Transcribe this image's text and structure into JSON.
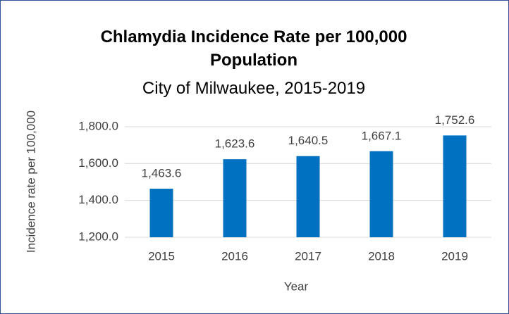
{
  "chart_data": {
    "type": "bar",
    "title": "Chlamydia Incidence Rate per 100,000 Population",
    "subtitle": "City of Milwaukee, 2015-2019",
    "x_label": "Year",
    "y_label": "Incidence rate per 100,000",
    "categories": [
      "2015",
      "2016",
      "2017",
      "2018",
      "2019"
    ],
    "values": [
      1463.6,
      1623.6,
      1640.5,
      1667.1,
      1752.6
    ],
    "value_labels": [
      "1,463.6",
      "1,623.6",
      "1,640.5",
      "1,667.1",
      "1,752.6"
    ],
    "color": "#0070c0",
    "ylim": [
      1200,
      1800
    ],
    "yticks": [
      {
        "value": 1200,
        "label": "1,200.0"
      },
      {
        "value": 1400,
        "label": "1,400.0"
      },
      {
        "value": 1600,
        "label": "1,600.0"
      },
      {
        "value": 1800,
        "label": "1,800.0"
      }
    ],
    "grid": true
  }
}
